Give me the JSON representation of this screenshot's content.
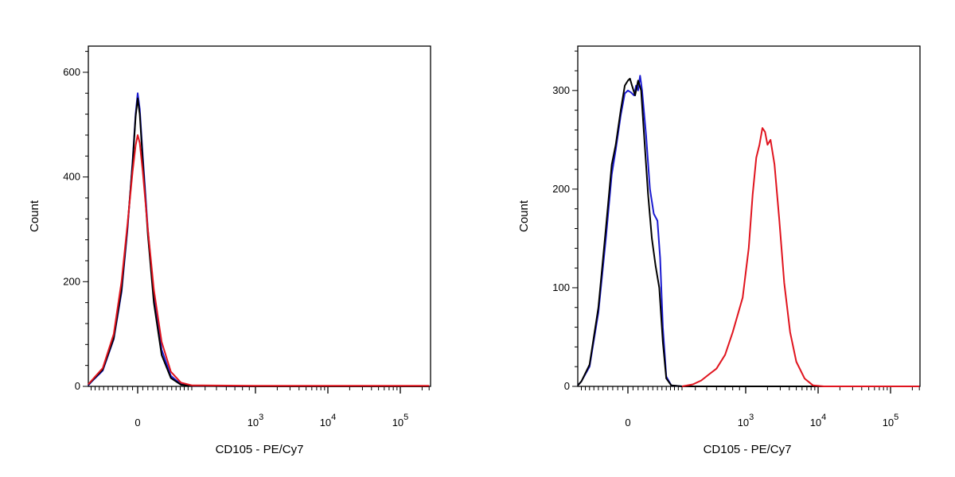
{
  "chart_data": [
    {
      "type": "line",
      "xlabel": "CD105 - PE/Cy7",
      "ylabel": "Count",
      "x_scale": "biexponential",
      "ylim": [
        0,
        650
      ],
      "y_ticks": [
        {
          "value": 0,
          "label": "0"
        },
        {
          "value": 200,
          "label": "200"
        },
        {
          "value": 400,
          "label": "400"
        },
        {
          "value": 600,
          "label": "600"
        }
      ],
      "x_ticks": [
        {
          "value": 0,
          "label": "0",
          "exp": ""
        },
        {
          "value": 1000,
          "label": "10",
          "exp": "3"
        },
        {
          "value": 10000,
          "label": "10",
          "exp": "4"
        },
        {
          "value": 100000,
          "label": "10",
          "exp": "5"
        }
      ],
      "grid": false,
      "legend": "none",
      "series": [
        {
          "color": "#1a1ad0",
          "points": [
            [
              -320,
              2
            ],
            [
              -250,
              8
            ],
            [
              -180,
              30
            ],
            [
              -120,
              90
            ],
            [
              -80,
              180
            ],
            [
              -50,
              300
            ],
            [
              -25,
              430
            ],
            [
              -10,
              520
            ],
            [
              0,
              560
            ],
            [
              10,
              530
            ],
            [
              25,
              440
            ],
            [
              50,
              300
            ],
            [
              80,
              170
            ],
            [
              120,
              70
            ],
            [
              170,
              20
            ],
            [
              230,
              4
            ],
            [
              300,
              1
            ],
            [
              1000,
              0
            ],
            [
              10000,
              0
            ],
            [
              250000,
              0
            ]
          ]
        },
        {
          "color": "#000000",
          "points": [
            [
              -320,
              3
            ],
            [
              -250,
              9
            ],
            [
              -180,
              32
            ],
            [
              -120,
              92
            ],
            [
              -80,
              185
            ],
            [
              -50,
              305
            ],
            [
              -25,
              425
            ],
            [
              -10,
              515
            ],
            [
              0,
              550
            ],
            [
              10,
              520
            ],
            [
              25,
              430
            ],
            [
              50,
              290
            ],
            [
              80,
              160
            ],
            [
              120,
              60
            ],
            [
              170,
              16
            ],
            [
              230,
              3
            ],
            [
              300,
              1
            ],
            [
              1000,
              0
            ],
            [
              10000,
              0
            ],
            [
              250000,
              0
            ]
          ]
        },
        {
          "color": "#e0141e",
          "points": [
            [
              -320,
              4
            ],
            [
              -250,
              10
            ],
            [
              -180,
              35
            ],
            [
              -120,
              100
            ],
            [
              -80,
              200
            ],
            [
              -50,
              310
            ],
            [
              -25,
              410
            ],
            [
              -10,
              460
            ],
            [
              0,
              480
            ],
            [
              10,
              465
            ],
            [
              25,
              410
            ],
            [
              50,
              300
            ],
            [
              80,
              185
            ],
            [
              120,
              85
            ],
            [
              170,
              28
            ],
            [
              230,
              7
            ],
            [
              300,
              2
            ],
            [
              1000,
              1
            ],
            [
              10000,
              1
            ],
            [
              250000,
              1
            ]
          ]
        }
      ]
    },
    {
      "type": "line",
      "xlabel": "CD105 - PE/Cy7",
      "ylabel": "Count",
      "x_scale": "biexponential",
      "ylim": [
        0,
        345
      ],
      "y_ticks": [
        {
          "value": 0,
          "label": "0"
        },
        {
          "value": 100,
          "label": "100"
        },
        {
          "value": 200,
          "label": "200"
        },
        {
          "value": 300,
          "label": "300"
        }
      ],
      "x_ticks": [
        {
          "value": 0,
          "label": "0",
          "exp": ""
        },
        {
          "value": 1000,
          "label": "10",
          "exp": "3"
        },
        {
          "value": 10000,
          "label": "10",
          "exp": "4"
        },
        {
          "value": 100000,
          "label": "10",
          "exp": "5"
        }
      ],
      "grid": false,
      "legend": "none",
      "series": [
        {
          "color": "#1a1ad0",
          "points": [
            [
              -320,
              1
            ],
            [
              -250,
              5
            ],
            [
              -200,
              20
            ],
            [
              -150,
              75
            ],
            [
              -110,
              150
            ],
            [
              -80,
              215
            ],
            [
              -60,
              240
            ],
            [
              -35,
              275
            ],
            [
              -15,
              297
            ],
            [
              0,
              300
            ],
            [
              15,
              298
            ],
            [
              30,
              295
            ],
            [
              40,
              305
            ],
            [
              50,
              300
            ],
            [
              60,
              315
            ],
            [
              70,
              300
            ],
            [
              90,
              255
            ],
            [
              110,
              200
            ],
            [
              130,
              175
            ],
            [
              150,
              168
            ],
            [
              165,
              130
            ],
            [
              180,
              60
            ],
            [
              200,
              10
            ],
            [
              230,
              1
            ],
            [
              300,
              0
            ],
            [
              1000,
              0
            ],
            [
              10000,
              0
            ],
            [
              250000,
              0
            ]
          ]
        },
        {
          "color": "#000000",
          "points": [
            [
              -320,
              1
            ],
            [
              -250,
              5
            ],
            [
              -200,
              22
            ],
            [
              -150,
              80
            ],
            [
              -110,
              160
            ],
            [
              -80,
              225
            ],
            [
              -60,
              245
            ],
            [
              -35,
              280
            ],
            [
              -15,
              305
            ],
            [
              0,
              310
            ],
            [
              10,
              312
            ],
            [
              20,
              305
            ],
            [
              35,
              295
            ],
            [
              50,
              310
            ],
            [
              65,
              300
            ],
            [
              80,
              255
            ],
            [
              100,
              195
            ],
            [
              120,
              150
            ],
            [
              140,
              122
            ],
            [
              160,
              100
            ],
            [
              180,
              45
            ],
            [
              200,
              8
            ],
            [
              230,
              1
            ],
            [
              300,
              0
            ],
            [
              1000,
              0
            ],
            [
              10000,
              0
            ],
            [
              250000,
              0
            ]
          ]
        },
        {
          "color": "#e0141e",
          "points": [
            [
              300,
              0
            ],
            [
              380,
              2
            ],
            [
              450,
              6
            ],
            [
              520,
              12
            ],
            [
              600,
              18
            ],
            [
              700,
              32
            ],
            [
              800,
              55
            ],
            [
              950,
              90
            ],
            [
              1100,
              140
            ],
            [
              1250,
              195
            ],
            [
              1400,
              232
            ],
            [
              1550,
              245
            ],
            [
              1700,
              262
            ],
            [
              1850,
              258
            ],
            [
              2000,
              245
            ],
            [
              2200,
              250
            ],
            [
              2500,
              225
            ],
            [
              2900,
              170
            ],
            [
              3400,
              105
            ],
            [
              4100,
              55
            ],
            [
              5000,
              25
            ],
            [
              6500,
              8
            ],
            [
              8500,
              1
            ],
            [
              12000,
              0
            ],
            [
              250000,
              0
            ]
          ]
        }
      ]
    }
  ]
}
